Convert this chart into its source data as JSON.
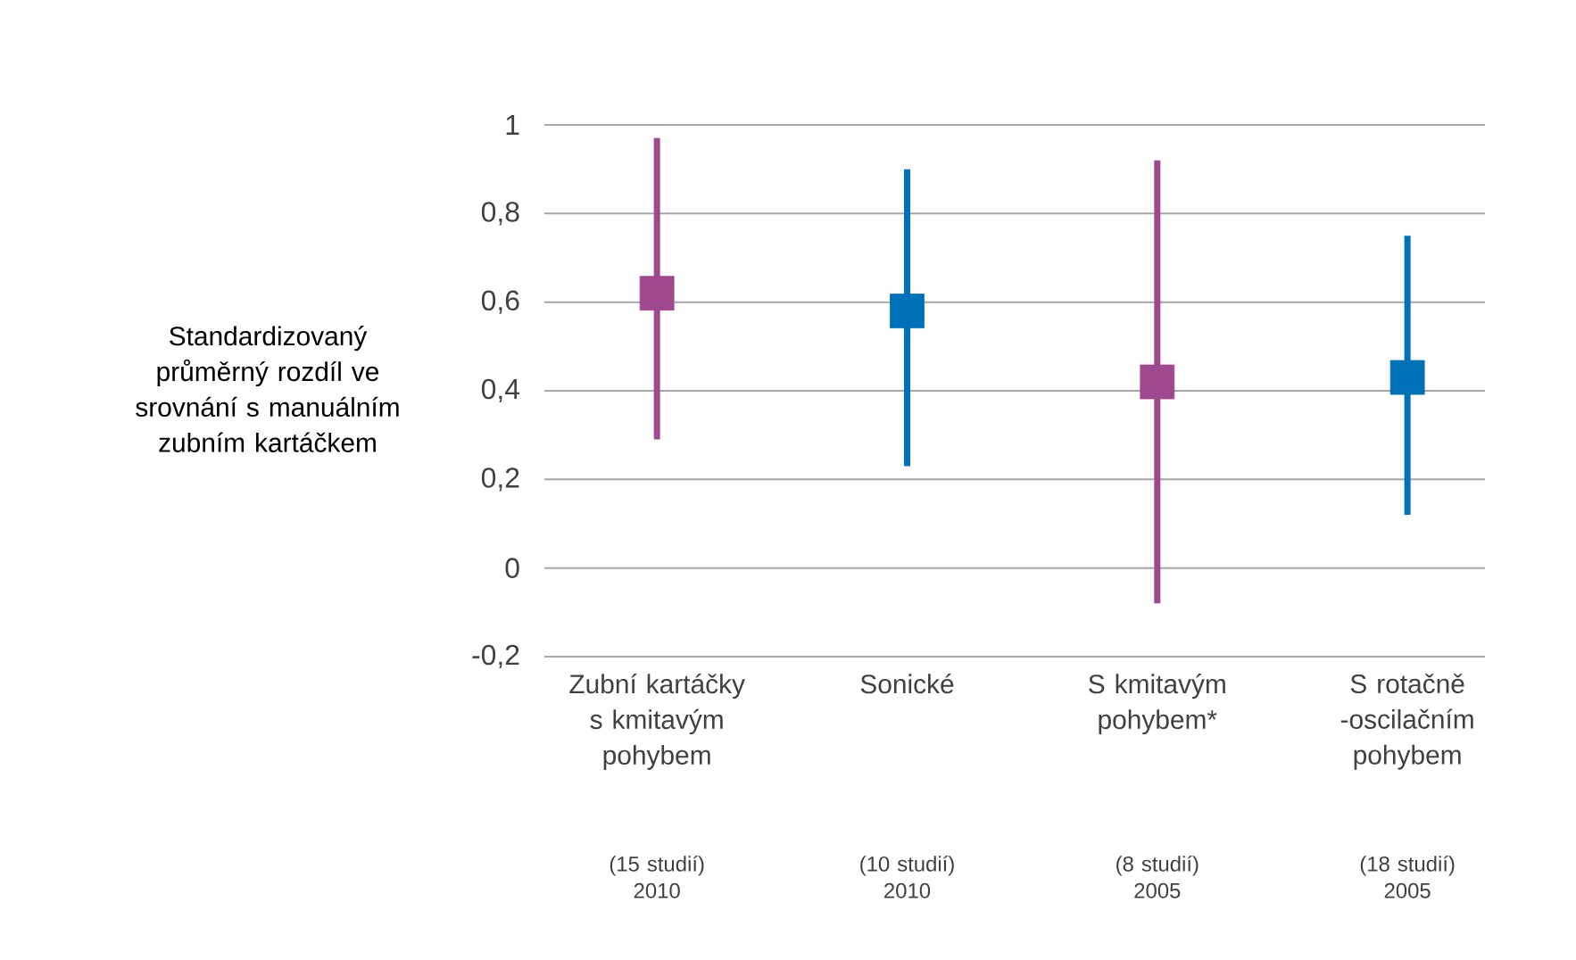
{
  "chart_data": {
    "type": "scatter",
    "ylabel": "Standardizovaný průměrný rozdíl ve srovnání s manuálním zubním kartáčkem",
    "categories": [
      "Zubní kartáčky s kmitavým pohybem",
      "Sonické",
      "S kmitavým pohybem*",
      "S rotačně -oscilačním pohybem"
    ],
    "values": [
      0.62,
      0.58,
      0.42,
      0.43
    ],
    "errors": [
      [
        0.29,
        0.97
      ],
      [
        0.23,
        0.9
      ],
      [
        -0.08,
        0.92
      ],
      [
        0.12,
        0.75
      ]
    ],
    "colors": [
      "#a0488f",
      "#0070b8",
      "#a0488f",
      "#0070b8"
    ],
    "marker": "square",
    "grid": "y",
    "ylim": [
      -0.2,
      1
    ],
    "yticks": [
      {
        "value": -0.2,
        "label": "-0,2"
      },
      0,
      {
        "value": 0.2,
        "label": "0,2"
      },
      {
        "value": 0.4,
        "label": "0,4"
      },
      {
        "value": 0.6,
        "label": "0,6"
      },
      {
        "value": 0.8,
        "label": "0,8"
      },
      1
    ],
    "annotations": [
      "(15 studií) 2010",
      "(10 studií) 2010",
      "(8 studií) 2005",
      "(18 studií) 2005"
    ]
  }
}
